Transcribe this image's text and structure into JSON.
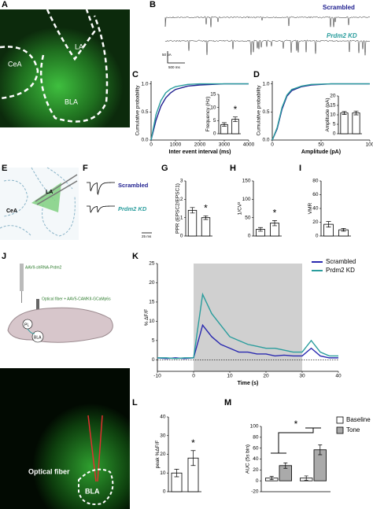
{
  "panels": [
    "A",
    "B",
    "C",
    "D",
    "E",
    "F",
    "G",
    "H",
    "I",
    "J",
    "K",
    "L",
    "M"
  ],
  "labels": {
    "a_cea": "CeA",
    "a_la": "LA",
    "a_bla": "BLA",
    "b_scrambled": "Scrambled",
    "b_kd": "Prdm2 KD",
    "b_scale_y": "50 pA",
    "b_scale_x": "500 ms",
    "e_cea": "CeA",
    "e_la": "LA",
    "f_scrambled": "Scrambled",
    "f_kd": "Prdm2 KD",
    "f_scale": "25 ms",
    "j_virus": "AAV9-shRNA-Prdm2",
    "j_fiber": "Optical fiber + AAV5-CAMKII-GCaMp6s",
    "j_pl": "PL",
    "j_bla": "BLA",
    "j_img_fiber": "Optical fiber",
    "j_img_bla": "BLA"
  },
  "chart_data": [
    {
      "type": "line",
      "xlabel": "Inter event interval (ms)",
      "ylabel": "Cumulative probability",
      "x": [
        0,
        200,
        400,
        600,
        800,
        1000,
        1500,
        2000,
        3000,
        4000
      ],
      "xlim": [
        0,
        4000
      ],
      "xticks": [
        0,
        1000,
        2000,
        3000,
        4000
      ],
      "ylim": [
        0,
        1.05
      ],
      "yticks": [
        {
          "value": 0,
          "label": "0.0"
        },
        {
          "value": 0.5,
          "label": "0.5"
        },
        {
          "value": 1,
          "label": "1.0"
        }
      ],
      "series": [
        {
          "name": "Scrambled",
          "color": "#1f1f8f",
          "values": [
            0,
            0.35,
            0.6,
            0.75,
            0.84,
            0.9,
            0.96,
            0.98,
            1,
            1
          ]
        },
        {
          "name": "Prdm2 KD",
          "color": "#2a9d9d",
          "values": [
            0,
            0.45,
            0.7,
            0.84,
            0.91,
            0.95,
            0.99,
            1,
            1,
            1
          ]
        }
      ]
    },
    {
      "type": "bar",
      "ylabel": "Frequency (Hz)",
      "categories": [
        null,
        null
      ],
      "values": [
        3.5,
        5.5
      ],
      "errors": [
        0.7,
        0.9
      ],
      "ylim": [
        0,
        15
      ],
      "yticks": [
        0,
        5,
        10,
        15
      ],
      "annotations": [
        "*"
      ]
    },
    {
      "type": "line",
      "xlabel": "Amplitude (pA)",
      "ylabel": "Cumulative probability",
      "x": [
        0,
        5,
        10,
        15,
        20,
        30,
        40,
        60,
        100
      ],
      "xlim": [
        0,
        100
      ],
      "xticks": [
        0,
        50,
        100
      ],
      "ylim": [
        0,
        1.05
      ],
      "yticks": [
        {
          "value": 0,
          "label": "0.0"
        },
        {
          "value": 0.5,
          "label": "0.5"
        },
        {
          "value": 1,
          "label": "1.0"
        }
      ],
      "series": [
        {
          "name": "Scrambled",
          "color": "#1f1f8f",
          "values": [
            0,
            0.2,
            0.55,
            0.78,
            0.88,
            0.95,
            0.98,
            1,
            1
          ]
        },
        {
          "name": "Prdm2 KD",
          "color": "#2a9d9d",
          "values": [
            0,
            0.22,
            0.58,
            0.8,
            0.9,
            0.96,
            0.99,
            1,
            1
          ]
        }
      ]
    },
    {
      "type": "bar",
      "ylabel": "Amplitude (pA)",
      "categories": [
        null,
        null
      ],
      "values": [
        11,
        11
      ],
      "errors": [
        0.8,
        1
      ],
      "ylim": [
        0,
        20
      ],
      "yticks": [
        0,
        5,
        10,
        15,
        20
      ]
    },
    {
      "type": "bar",
      "ylabel": "PPR (EPSC2/EPSC1)",
      "categories": [
        null,
        null
      ],
      "values": [
        1.4,
        1.0
      ],
      "errors": [
        0.15,
        0.1
      ],
      "ylim": [
        0,
        3
      ],
      "yticks": [
        0,
        1,
        2,
        3
      ],
      "annotations": [
        "*"
      ]
    },
    {
      "type": "bar",
      "ylabel": "1/CV²",
      "categories": [
        null,
        null
      ],
      "values": [
        18,
        35
      ],
      "errors": [
        5,
        7
      ],
      "ylim": [
        0,
        150
      ],
      "yticks": [
        0,
        50,
        100,
        150
      ],
      "annotations": [
        "*"
      ]
    },
    {
      "type": "bar",
      "ylabel": "VMR",
      "categories": [
        null,
        null
      ],
      "values": [
        17,
        9
      ],
      "errors": [
        4,
        2
      ],
      "ylim": [
        0,
        80
      ],
      "yticks": [
        0,
        20,
        40,
        60,
        80
      ]
    },
    {
      "type": "line",
      "xlabel": "Time (s)",
      "ylabel": "% ΔF/F",
      "legend": "upper right",
      "highlight": [
        0,
        30
      ],
      "x": [
        -10,
        -7.5,
        -5,
        -2.5,
        0,
        2.5,
        5,
        7.5,
        10,
        12.5,
        15,
        17.5,
        20,
        22.5,
        25,
        27.5,
        30,
        32.5,
        35,
        37.5,
        40
      ],
      "xlim": [
        -10,
        40
      ],
      "xticks": [
        -10,
        0,
        10,
        20,
        30,
        40
      ],
      "ylim": [
        -3,
        25
      ],
      "yticks": [
        0,
        5,
        10,
        15,
        20,
        25
      ],
      "series": [
        {
          "name": "Scrambled",
          "color": "#2a2ab0",
          "values": [
            0.5,
            0.3,
            0.5,
            0.3,
            0.5,
            9,
            6,
            4,
            3,
            2,
            2,
            1.5,
            1.5,
            1,
            1.2,
            1,
            1,
            3,
            1,
            0.5,
            0.5
          ]
        },
        {
          "name": "Prdm2 KD",
          "color": "#2a9d9d",
          "values": [
            0.5,
            0.5,
            0.3,
            0.5,
            0.5,
            17,
            12,
            9,
            6,
            5,
            4,
            3.5,
            3,
            3,
            2.5,
            2,
            2,
            5,
            2,
            1,
            1
          ]
        }
      ]
    },
    {
      "type": "bar",
      "ylabel": "peak %ΔF/F",
      "categories": [
        null,
        null
      ],
      "values": [
        10,
        18
      ],
      "errors": [
        2,
        4
      ],
      "ylim": [
        0,
        40
      ],
      "yticks": [
        0,
        10,
        20,
        30,
        40
      ],
      "annotations": [
        "*"
      ]
    },
    {
      "type": "grouped-bar",
      "ylabel": "AUC (5s bin)",
      "categories": [
        null,
        null
      ],
      "legend": "upper right",
      "ylim": [
        -20,
        100
      ],
      "yticks": [
        -20,
        0,
        20,
        40,
        60,
        80,
        100
      ],
      "annotations": [
        "*"
      ],
      "series": [
        {
          "name": "Baseline",
          "color": "#ffffff",
          "values": [
            5,
            5
          ],
          "errors": [
            3,
            4
          ]
        },
        {
          "name": "Tone",
          "color": "#aaaaaa",
          "values": [
            28,
            57
          ],
          "errors": [
            5,
            9
          ]
        }
      ]
    }
  ]
}
